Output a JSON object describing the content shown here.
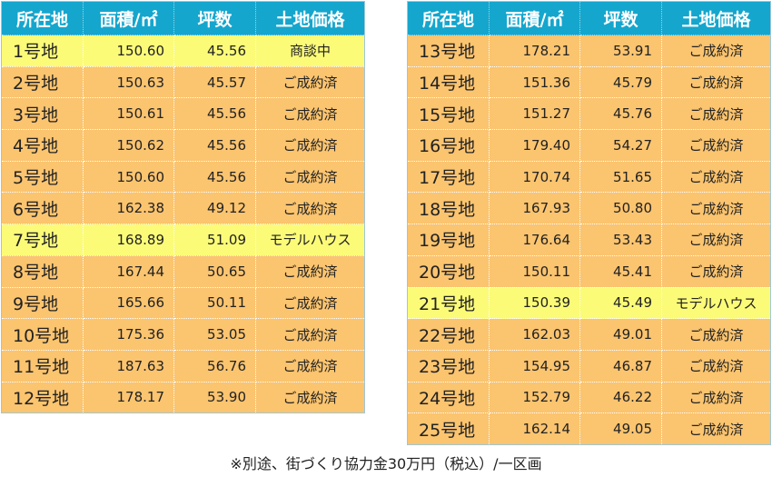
{
  "headers": {
    "location": "所在地",
    "area": "面積/㎡",
    "tsubo": "坪数",
    "price": "土地価格"
  },
  "left_rows": [
    {
      "lot": "1号地",
      "area": "150.60",
      "tsubo": "45.56",
      "price": "商談中",
      "highlight": true
    },
    {
      "lot": "2号地",
      "area": "150.63",
      "tsubo": "45.57",
      "price": "ご成約済",
      "highlight": false
    },
    {
      "lot": "3号地",
      "area": "150.61",
      "tsubo": "45.56",
      "price": "ご成約済",
      "highlight": false
    },
    {
      "lot": "4号地",
      "area": "150.62",
      "tsubo": "45.56",
      "price": "ご成約済",
      "highlight": false
    },
    {
      "lot": "5号地",
      "area": "150.60",
      "tsubo": "45.56",
      "price": "ご成約済",
      "highlight": false
    },
    {
      "lot": "6号地",
      "area": "162.38",
      "tsubo": "49.12",
      "price": "ご成約済",
      "highlight": false
    },
    {
      "lot": "7号地",
      "area": "168.89",
      "tsubo": "51.09",
      "price": "モデルハウス",
      "highlight": true
    },
    {
      "lot": "8号地",
      "area": "167.44",
      "tsubo": "50.65",
      "price": "ご成約済",
      "highlight": false
    },
    {
      "lot": "9号地",
      "area": "165.66",
      "tsubo": "50.11",
      "price": "ご成約済",
      "highlight": false
    },
    {
      "lot": "10号地",
      "area": "175.36",
      "tsubo": "53.05",
      "price": "ご成約済",
      "highlight": false
    },
    {
      "lot": "11号地",
      "area": "187.63",
      "tsubo": "56.76",
      "price": "ご成約済",
      "highlight": false
    },
    {
      "lot": "12号地",
      "area": "178.17",
      "tsubo": "53.90",
      "price": "ご成約済",
      "highlight": false
    }
  ],
  "right_rows": [
    {
      "lot": "13号地",
      "area": "178.21",
      "tsubo": "53.91",
      "price": "ご成約済",
      "highlight": false
    },
    {
      "lot": "14号地",
      "area": "151.36",
      "tsubo": "45.79",
      "price": "ご成約済",
      "highlight": false
    },
    {
      "lot": "15号地",
      "area": "151.27",
      "tsubo": "45.76",
      "price": "ご成約済",
      "highlight": false
    },
    {
      "lot": "16号地",
      "area": "179.40",
      "tsubo": "54.27",
      "price": "ご成約済",
      "highlight": false
    },
    {
      "lot": "17号地",
      "area": "170.74",
      "tsubo": "51.65",
      "price": "ご成約済",
      "highlight": false
    },
    {
      "lot": "18号地",
      "area": "167.93",
      "tsubo": "50.80",
      "price": "ご成約済",
      "highlight": false
    },
    {
      "lot": "19号地",
      "area": "176.64",
      "tsubo": "53.43",
      "price": "ご成約済",
      "highlight": false
    },
    {
      "lot": "20号地",
      "area": "150.11",
      "tsubo": "45.41",
      "price": "ご成約済",
      "highlight": false
    },
    {
      "lot": "21号地",
      "area": "150.39",
      "tsubo": "45.49",
      "price": "モデルハウス",
      "highlight": true
    },
    {
      "lot": "22号地",
      "area": "162.03",
      "tsubo": "49.01",
      "price": "ご成約済",
      "highlight": false
    },
    {
      "lot": "23号地",
      "area": "154.95",
      "tsubo": "46.87",
      "price": "ご成約済",
      "highlight": false
    },
    {
      "lot": "24号地",
      "area": "152.79",
      "tsubo": "46.22",
      "price": "ご成約済",
      "highlight": false
    },
    {
      "lot": "25号地",
      "area": "162.14",
      "tsubo": "49.05",
      "price": "ご成約済",
      "highlight": false
    }
  ],
  "footnote": "※別途、街づくり協力金30万円（税込）/一区画",
  "colors": {
    "header_bg": "#15a6cd",
    "row_bg": "#fbc46f",
    "highlight_bg": "#fbfb78"
  }
}
